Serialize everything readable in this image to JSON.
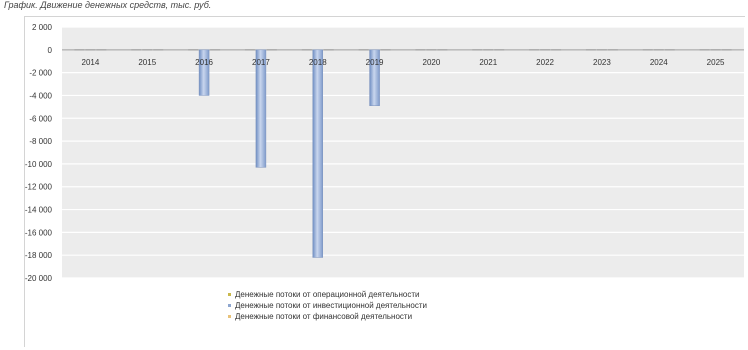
{
  "chart_data": {
    "type": "bar",
    "title": "График. Движение денежных средств, тыс. руб.",
    "categories": [
      "2014",
      "2015",
      "2016",
      "2017",
      "2018",
      "2019",
      "2020",
      "2021",
      "2022",
      "2023",
      "2024",
      "2025"
    ],
    "series": [
      {
        "name": "Денежные потоки от операционной деятельности",
        "values": [
          0,
          0,
          0,
          0,
          0,
          0,
          0,
          0,
          0,
          0,
          0,
          0
        ],
        "color": "#c9b84a"
      },
      {
        "name": "Денежные потоки от инвестиционной деятельности",
        "values": [
          0,
          0,
          -4000,
          -10300,
          -18200,
          -4900,
          0,
          0,
          0,
          0,
          0,
          0
        ],
        "color": "#8ea6cf"
      },
      {
        "name": "Денежные потоки от финансовой деятельности",
        "values": [
          0,
          0,
          0,
          0,
          0,
          0,
          0,
          0,
          0,
          0,
          0,
          0
        ],
        "color": "#e8c27a"
      }
    ],
    "ylim": [
      -20000,
      2000
    ],
    "yticks": [
      2000,
      0,
      -2000,
      -4000,
      -6000,
      -8000,
      -10000,
      -12000,
      -14000,
      -16000,
      -18000,
      -20000
    ],
    "ytick_labels": [
      "2 000",
      "0",
      "-2 000",
      "-4 000",
      "-6 000",
      "-8 000",
      "-10 000",
      "-12 000",
      "-14 000",
      "-16 000",
      "-18 000",
      "-20 000"
    ],
    "grid": true,
    "legend_position": "bottom"
  }
}
